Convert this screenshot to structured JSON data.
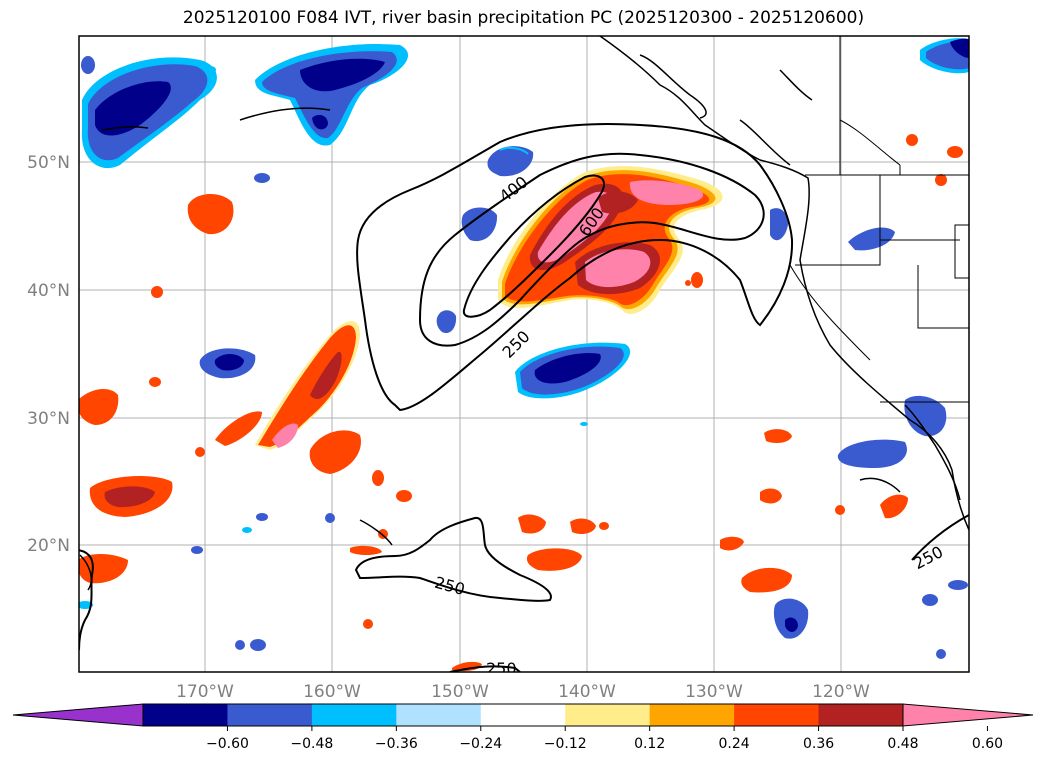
{
  "title": "2025120100 F084 IVT, river basin precipitation PC (2025120300 - 2025120600)",
  "map": {
    "lat_labels": [
      "50°N",
      "40°N",
      "30°N",
      "20°N"
    ],
    "lon_labels": [
      "170°W",
      "160°W",
      "150°W",
      "140°W",
      "130°W",
      "120°W"
    ],
    "ivt_contour_labels": [
      "400",
      "600",
      "250",
      "250",
      "250",
      "250"
    ]
  },
  "colorbar": {
    "tick_labels": [
      "−0.60",
      "−0.48",
      "−0.36",
      "−0.24",
      "−0.12",
      "0.12",
      "0.24",
      "0.36",
      "0.48",
      "0.60"
    ],
    "colors": [
      "#9932cc",
      "#00008b",
      "#3a5bd0",
      "#00bfff",
      "#b0e2ff",
      "#ffffff",
      "#ffec8b",
      "#ffa500",
      "#ff4500",
      "#b22222",
      "#ff82ab"
    ]
  },
  "colors": {
    "gridline": "#b0b0b0",
    "coast": "#000000"
  }
}
